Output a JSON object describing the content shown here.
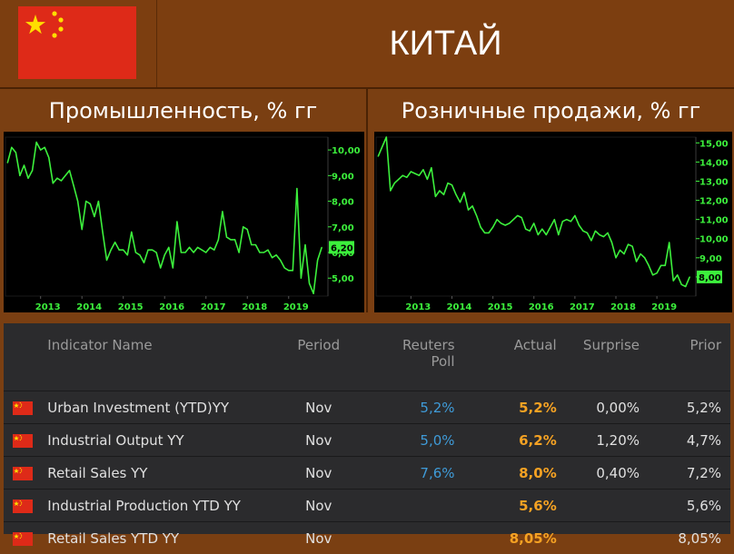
{
  "header": {
    "title": "КИТАЙ"
  },
  "panels": {
    "industry": {
      "title": "Промышленность, % гг"
    },
    "retail": {
      "title": "Розничные продажи, % гг"
    }
  },
  "chart_data": [
    {
      "type": "line",
      "title": "Промышленность, % гг",
      "x_ticks": [
        "2013",
        "2014",
        "2015",
        "2016",
        "2017",
        "2018",
        "2019"
      ],
      "y_ticks": [
        "5,00",
        "6,00",
        "7,00",
        "8,00",
        "9,00",
        "10,00"
      ],
      "ylim": [
        4.3,
        10.5
      ],
      "last_value_label": "6,20",
      "color": "#3cf03c",
      "x": [
        2012.2,
        2012.3,
        2012.4,
        2012.5,
        2012.6,
        2012.7,
        2012.8,
        2012.9,
        2013.0,
        2013.1,
        2013.2,
        2013.3,
        2013.4,
        2013.5,
        2013.6,
        2013.7,
        2013.8,
        2013.9,
        2014.0,
        2014.1,
        2014.2,
        2014.3,
        2014.4,
        2014.5,
        2014.6,
        2014.7,
        2014.8,
        2014.9,
        2015.0,
        2015.1,
        2015.2,
        2015.3,
        2015.4,
        2015.5,
        2015.6,
        2015.7,
        2015.8,
        2015.9,
        2016.0,
        2016.1,
        2016.2,
        2016.3,
        2016.4,
        2016.5,
        2016.6,
        2016.7,
        2016.8,
        2016.9,
        2017.0,
        2017.1,
        2017.2,
        2017.3,
        2017.4,
        2017.5,
        2017.6,
        2017.7,
        2017.8,
        2017.9,
        2018.0,
        2018.1,
        2018.2,
        2018.3,
        2018.4,
        2018.5,
        2018.6,
        2018.7,
        2018.8,
        2018.9,
        2019.0,
        2019.1,
        2019.2,
        2019.3,
        2019.4,
        2019.5,
        2019.6,
        2019.7,
        2019.8
      ],
      "y": [
        9.5,
        10.1,
        9.9,
        9.0,
        9.4,
        8.9,
        9.2,
        10.3,
        10.0,
        10.1,
        9.7,
        8.7,
        8.9,
        8.8,
        9.0,
        9.2,
        8.6,
        8.0,
        6.9,
        8.0,
        7.9,
        7.4,
        8.0,
        6.8,
        5.7,
        6.1,
        6.4,
        6.1,
        6.1,
        5.9,
        6.8,
        6.0,
        5.9,
        5.6,
        6.1,
        6.1,
        6.0,
        5.4,
        5.9,
        6.2,
        5.4,
        7.2,
        6.0,
        6.0,
        6.2,
        6.0,
        6.2,
        6.1,
        6.0,
        6.2,
        6.1,
        6.5,
        7.6,
        6.6,
        6.5,
        6.5,
        6.0,
        7.0,
        6.9,
        6.3,
        6.3,
        6.0,
        6.0,
        6.1,
        5.8,
        5.9,
        5.7,
        5.4,
        5.3,
        5.3,
        8.5,
        5.0,
        6.3,
        4.8,
        4.4,
        5.7,
        6.2
      ]
    },
    {
      "type": "line",
      "title": "Розничные продажи, % гг",
      "x_ticks": [
        "2013",
        "2014",
        "2015",
        "2016",
        "2017",
        "2018",
        "2019"
      ],
      "y_ticks": [
        "8,00",
        "9,00",
        "10,00",
        "11,00",
        "12,00",
        "13,00",
        "14,00",
        "15,00"
      ],
      "ylim": [
        7.0,
        15.3
      ],
      "last_value_label": "8,00",
      "color": "#3cf03c",
      "x": [
        2012.2,
        2012.3,
        2012.4,
        2012.5,
        2012.6,
        2012.7,
        2012.8,
        2012.9,
        2013.0,
        2013.1,
        2013.2,
        2013.3,
        2013.4,
        2013.5,
        2013.6,
        2013.7,
        2013.8,
        2013.9,
        2014.0,
        2014.1,
        2014.2,
        2014.3,
        2014.4,
        2014.5,
        2014.6,
        2014.7,
        2014.8,
        2014.9,
        2015.0,
        2015.1,
        2015.2,
        2015.3,
        2015.4,
        2015.5,
        2015.6,
        2015.7,
        2015.8,
        2015.9,
        2016.0,
        2016.1,
        2016.2,
        2016.3,
        2016.4,
        2016.5,
        2016.6,
        2016.7,
        2016.8,
        2016.9,
        2017.0,
        2017.1,
        2017.2,
        2017.3,
        2017.4,
        2017.5,
        2017.6,
        2017.7,
        2017.8,
        2017.9,
        2018.0,
        2018.1,
        2018.2,
        2018.3,
        2018.4,
        2018.5,
        2018.6,
        2018.7,
        2018.8,
        2018.9,
        2019.0,
        2019.1,
        2019.2,
        2019.3,
        2019.4,
        2019.5,
        2019.6,
        2019.7,
        2019.8
      ],
      "y": [
        14.3,
        14.8,
        15.3,
        12.5,
        12.9,
        13.1,
        13.3,
        13.2,
        13.5,
        13.4,
        13.3,
        13.6,
        13.1,
        13.7,
        12.2,
        12.5,
        12.3,
        12.9,
        12.8,
        12.3,
        11.9,
        12.4,
        11.5,
        11.7,
        11.2,
        10.6,
        10.3,
        10.3,
        10.6,
        11.0,
        10.8,
        10.7,
        10.8,
        11.0,
        11.2,
        11.1,
        10.5,
        10.4,
        10.8,
        10.2,
        10.5,
        10.2,
        10.6,
        11.0,
        10.2,
        10.9,
        11.0,
        10.9,
        11.2,
        10.7,
        10.4,
        10.3,
        9.9,
        10.4,
        10.2,
        10.1,
        10.3,
        9.8,
        9.0,
        9.4,
        9.2,
        9.7,
        9.6,
        8.8,
        9.2,
        9.0,
        8.6,
        8.1,
        8.2,
        8.6,
        8.6,
        9.8,
        7.8,
        8.1,
        7.6,
        7.5,
        8.0
      ]
    }
  ],
  "table": {
    "headers": {
      "name": "Indicator Name",
      "period": "Period",
      "poll_line1": "Reuters",
      "poll_line2": "Poll",
      "actual": "Actual",
      "surprise": "Surprise",
      "prior": "Prior"
    },
    "rows": [
      {
        "name": "Urban Investment (YTD)YY",
        "period": "Nov",
        "poll": "5,2%",
        "actual": "5,2%",
        "surprise": "0,00%",
        "prior": "5,2%"
      },
      {
        "name": "Industrial Output YY",
        "period": "Nov",
        "poll": "5,0%",
        "actual": "6,2%",
        "surprise": "1,20%",
        "prior": "4,7%"
      },
      {
        "name": "Retail Sales YY",
        "period": "Nov",
        "poll": "7,6%",
        "actual": "8,0%",
        "surprise": "0,40%",
        "prior": "7,2%"
      },
      {
        "name": "Industrial Production YTD YY",
        "period": "Nov",
        "poll": "",
        "actual": "5,6%",
        "surprise": "",
        "prior": "5,6%"
      },
      {
        "name": "Retail Sales YTD YY",
        "period": "Nov",
        "poll": "",
        "actual": "8,05%",
        "surprise": "",
        "prior": "8,05%"
      }
    ]
  },
  "colors": {
    "background": "#7a3f12",
    "flag_red": "#de2a18",
    "flag_yellow": "#ffde00",
    "line": "#3cf03c",
    "poll_blue": "#3f9bd8",
    "actual_orange": "#f5a223",
    "table_bg": "#2b2b2d"
  },
  "icons": {
    "flag": "china-flag-icon"
  }
}
